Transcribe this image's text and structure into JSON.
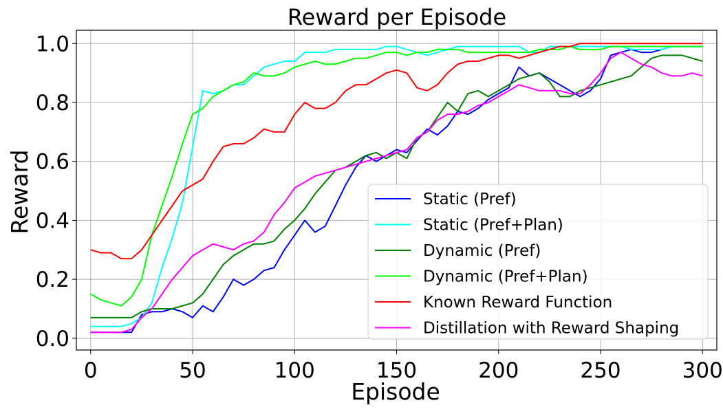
{
  "chart_data": {
    "type": "line",
    "title": "Reward per Episode",
    "xlabel": "Episode",
    "ylabel": "Reward",
    "xlim": [
      -7,
      307
    ],
    "ylim": [
      -0.04,
      1.045
    ],
    "xticks": [
      0,
      50,
      100,
      150,
      200,
      250,
      300
    ],
    "xtick_labels": [
      "0",
      "50",
      "100",
      "150",
      "200",
      "250",
      "300"
    ],
    "yticks": [
      0.0,
      0.2,
      0.4,
      0.6,
      0.8,
      1.0
    ],
    "ytick_labels": [
      "0.0",
      "0.2",
      "0.4",
      "0.6",
      "0.8",
      "1.0"
    ],
    "grid": true,
    "legend_position": "lower-right",
    "series": [
      {
        "name": "Static (Pref)",
        "color": "#0000ff",
        "x": [
          0,
          5,
          10,
          15,
          20,
          25,
          30,
          35,
          40,
          45,
          50,
          55,
          60,
          65,
          70,
          75,
          80,
          85,
          90,
          95,
          100,
          105,
          110,
          115,
          120,
          125,
          130,
          135,
          140,
          145,
          150,
          155,
          160,
          165,
          170,
          175,
          180,
          185,
          190,
          195,
          200,
          205,
          210,
          215,
          220,
          225,
          230,
          235,
          240,
          245,
          250,
          255,
          260,
          265,
          270,
          275,
          280,
          285,
          290,
          295,
          300
        ],
        "y": [
          0.02,
          0.02,
          0.02,
          0.02,
          0.02,
          0.08,
          0.09,
          0.09,
          0.1,
          0.09,
          0.07,
          0.11,
          0.09,
          0.14,
          0.2,
          0.18,
          0.2,
          0.23,
          0.24,
          0.3,
          0.35,
          0.4,
          0.36,
          0.38,
          0.45,
          0.52,
          0.58,
          0.62,
          0.6,
          0.62,
          0.64,
          0.63,
          0.67,
          0.71,
          0.69,
          0.72,
          0.77,
          0.76,
          0.78,
          0.81,
          0.83,
          0.85,
          0.92,
          0.89,
          0.9,
          0.88,
          0.86,
          0.84,
          0.82,
          0.84,
          0.88,
          0.96,
          0.97,
          0.98,
          0.97,
          0.97,
          0.98,
          0.99,
          0.99,
          0.99,
          0.99
        ]
      },
      {
        "name": "Static (Pref+Plan)",
        "color": "#00ffff",
        "x": [
          0,
          5,
          10,
          15,
          20,
          25,
          30,
          35,
          40,
          45,
          50,
          55,
          60,
          65,
          70,
          75,
          80,
          85,
          90,
          95,
          100,
          105,
          110,
          115,
          120,
          125,
          130,
          135,
          140,
          145,
          150,
          155,
          160,
          165,
          170,
          175,
          180,
          185,
          190,
          195,
          200,
          205,
          210,
          215,
          220,
          225,
          230,
          235,
          240,
          245,
          250,
          255,
          260,
          265,
          270,
          275,
          280,
          285,
          290,
          295,
          300
        ],
        "y": [
          0.04,
          0.04,
          0.04,
          0.04,
          0.05,
          0.07,
          0.12,
          0.24,
          0.34,
          0.46,
          0.65,
          0.84,
          0.83,
          0.84,
          0.86,
          0.86,
          0.89,
          0.92,
          0.93,
          0.94,
          0.94,
          0.97,
          0.97,
          0.97,
          0.98,
          0.98,
          0.98,
          0.98,
          0.98,
          0.99,
          0.99,
          0.98,
          0.97,
          0.96,
          0.97,
          0.98,
          0.99,
          0.99,
          0.99,
          0.99,
          0.99,
          0.99,
          0.99,
          0.97,
          0.97,
          0.99,
          0.99,
          0.99,
          0.99,
          0.99,
          0.99,
          0.99,
          0.99,
          0.98,
          0.98,
          0.98,
          0.98,
          0.99,
          0.99,
          0.99,
          0.99
        ]
      },
      {
        "name": "Dynamic (Pref)",
        "color": "#008000",
        "x": [
          0,
          5,
          10,
          15,
          20,
          25,
          30,
          35,
          40,
          45,
          50,
          55,
          60,
          65,
          70,
          75,
          80,
          85,
          90,
          95,
          100,
          105,
          110,
          115,
          120,
          125,
          130,
          135,
          140,
          145,
          150,
          155,
          160,
          165,
          170,
          175,
          180,
          185,
          190,
          195,
          200,
          205,
          210,
          215,
          220,
          225,
          230,
          235,
          240,
          245,
          250,
          255,
          260,
          265,
          270,
          275,
          280,
          285,
          290,
          295,
          300
        ],
        "y": [
          0.07,
          0.07,
          0.07,
          0.07,
          0.07,
          0.09,
          0.1,
          0.1,
          0.1,
          0.11,
          0.12,
          0.15,
          0.2,
          0.25,
          0.28,
          0.3,
          0.32,
          0.32,
          0.33,
          0.37,
          0.4,
          0.44,
          0.49,
          0.53,
          0.57,
          0.58,
          0.6,
          0.62,
          0.63,
          0.61,
          0.63,
          0.61,
          0.68,
          0.7,
          0.75,
          0.8,
          0.77,
          0.83,
          0.84,
          0.82,
          0.84,
          0.86,
          0.88,
          0.89,
          0.9,
          0.87,
          0.82,
          0.82,
          0.84,
          0.85,
          0.86,
          0.87,
          0.88,
          0.89,
          0.92,
          0.95,
          0.96,
          0.96,
          0.96,
          0.95,
          0.94
        ]
      },
      {
        "name": "Dynamic (Pref+Plan)",
        "color": "#00ff00",
        "x": [
          0,
          5,
          10,
          15,
          20,
          25,
          30,
          35,
          40,
          45,
          50,
          55,
          60,
          65,
          70,
          75,
          80,
          85,
          90,
          95,
          100,
          105,
          110,
          115,
          120,
          125,
          130,
          135,
          140,
          145,
          150,
          155,
          160,
          165,
          170,
          175,
          180,
          185,
          190,
          195,
          200,
          205,
          210,
          215,
          220,
          225,
          230,
          235,
          240,
          245,
          250,
          255,
          260,
          265,
          270,
          275,
          280,
          285,
          290,
          295,
          300
        ],
        "y": [
          0.15,
          0.13,
          0.12,
          0.11,
          0.14,
          0.2,
          0.35,
          0.45,
          0.55,
          0.66,
          0.76,
          0.78,
          0.82,
          0.84,
          0.86,
          0.87,
          0.9,
          0.89,
          0.89,
          0.9,
          0.92,
          0.93,
          0.94,
          0.93,
          0.93,
          0.94,
          0.95,
          0.95,
          0.96,
          0.97,
          0.97,
          0.96,
          0.97,
          0.97,
          0.98,
          0.98,
          0.98,
          0.97,
          0.97,
          0.97,
          0.97,
          0.97,
          0.97,
          0.97,
          0.98,
          0.98,
          0.98,
          0.99,
          0.98,
          0.98,
          0.98,
          0.99,
          0.99,
          0.99,
          0.99,
          0.99,
          0.99,
          0.99,
          0.99,
          0.99,
          0.99
        ]
      },
      {
        "name": "Known Reward Function",
        "color": "#ff0000",
        "x": [
          0,
          5,
          10,
          15,
          20,
          25,
          30,
          35,
          40,
          45,
          50,
          55,
          60,
          65,
          70,
          75,
          80,
          85,
          90,
          95,
          100,
          105,
          110,
          115,
          120,
          125,
          130,
          135,
          140,
          145,
          150,
          155,
          160,
          165,
          170,
          175,
          180,
          185,
          190,
          195,
          200,
          205,
          210,
          215,
          220,
          225,
          230,
          235,
          240,
          245,
          250,
          255,
          260,
          265,
          270,
          275,
          280,
          285,
          290,
          295,
          300
        ],
        "y": [
          0.3,
          0.29,
          0.29,
          0.27,
          0.27,
          0.3,
          0.35,
          0.4,
          0.45,
          0.5,
          0.52,
          0.54,
          0.6,
          0.65,
          0.66,
          0.66,
          0.68,
          0.71,
          0.7,
          0.7,
          0.76,
          0.8,
          0.78,
          0.78,
          0.8,
          0.84,
          0.86,
          0.86,
          0.88,
          0.9,
          0.91,
          0.9,
          0.85,
          0.84,
          0.86,
          0.9,
          0.93,
          0.94,
          0.94,
          0.95,
          0.96,
          0.96,
          0.95,
          0.96,
          0.97,
          0.98,
          0.99,
          0.99,
          1.0,
          1.0,
          1.0,
          1.0,
          1.0,
          1.0,
          1.0,
          1.0,
          1.0,
          1.0,
          1.0,
          1.0,
          1.0
        ]
      },
      {
        "name": "Distillation with Reward Shaping",
        "color": "#ff00ff",
        "x": [
          0,
          5,
          10,
          15,
          20,
          25,
          30,
          35,
          40,
          45,
          50,
          55,
          60,
          65,
          70,
          75,
          80,
          85,
          90,
          95,
          100,
          105,
          110,
          115,
          120,
          125,
          130,
          135,
          140,
          145,
          150,
          155,
          160,
          165,
          170,
          175,
          180,
          185,
          190,
          195,
          200,
          205,
          210,
          215,
          220,
          225,
          230,
          235,
          240,
          245,
          250,
          255,
          260,
          265,
          270,
          275,
          280,
          285,
          290,
          295,
          300
        ],
        "y": [
          0.02,
          0.02,
          0.02,
          0.02,
          0.03,
          0.07,
          0.1,
          0.15,
          0.2,
          0.24,
          0.28,
          0.3,
          0.32,
          0.31,
          0.3,
          0.32,
          0.33,
          0.36,
          0.42,
          0.46,
          0.51,
          0.53,
          0.55,
          0.56,
          0.57,
          0.58,
          0.59,
          0.6,
          0.61,
          0.62,
          0.63,
          0.64,
          0.68,
          0.7,
          0.74,
          0.76,
          0.76,
          0.77,
          0.79,
          0.8,
          0.82,
          0.84,
          0.86,
          0.85,
          0.84,
          0.84,
          0.84,
          0.83,
          0.83,
          0.86,
          0.9,
          0.95,
          0.97,
          0.95,
          0.93,
          0.92,
          0.9,
          0.89,
          0.89,
          0.9,
          0.89
        ]
      }
    ]
  }
}
